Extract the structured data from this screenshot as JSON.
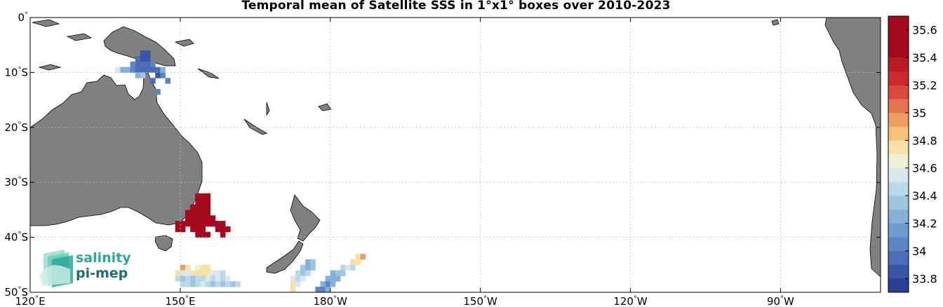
{
  "title": "Temporal mean of Satellite SSS in 1°x1° boxes over 2010-2023",
  "map": {
    "lon_range": [
      120,
      290
    ],
    "lat_range": [
      -50,
      0
    ],
    "land_color": "#808080",
    "grid": true
  },
  "x_ticks": [
    {
      "lon": 120,
      "num": "120",
      "hemi": "E"
    },
    {
      "lon": 150,
      "num": "150",
      "hemi": "E"
    },
    {
      "lon": 180,
      "num": "180",
      "hemi": "W"
    },
    {
      "lon": 210,
      "num": "150",
      "hemi": "W"
    },
    {
      "lon": 240,
      "num": "120",
      "hemi": "W"
    },
    {
      "lon": 270,
      "num": "90",
      "hemi": "W"
    }
  ],
  "y_ticks": [
    {
      "lat": 0,
      "num": "0",
      "hemi": ""
    },
    {
      "lat": -10,
      "num": "10",
      "hemi": "S"
    },
    {
      "lat": -20,
      "num": "20",
      "hemi": "S"
    },
    {
      "lat": -30,
      "num": "30",
      "hemi": "S"
    },
    {
      "lat": -40,
      "num": "40",
      "hemi": "S"
    },
    {
      "lat": -50,
      "num": "50",
      "hemi": "S"
    }
  ],
  "colorbar": {
    "min": 33.7,
    "max": 35.7,
    "colors": [
      "#2a3d95",
      "#3a55a6",
      "#4a6db5",
      "#5b86c2",
      "#6d9cce",
      "#84b1da",
      "#9ec6e3",
      "#b9d9ea",
      "#d8e8ec",
      "#edeed8",
      "#f6e1a6",
      "#f5c27a",
      "#ef9e63",
      "#e57352",
      "#d94a3a",
      "#c92a2b",
      "#b81b23",
      "#a50a1e",
      "#a50a1e",
      "#a50a1e"
    ],
    "tick_values": [
      33.8,
      34,
      34.2,
      34.4,
      34.6,
      34.8,
      35,
      35.2,
      35.4,
      35.6
    ],
    "tick_labels": [
      "33.8",
      "34",
      "34.2",
      "34.4",
      "34.6",
      "34.8",
      "35",
      "35.2",
      "35.4",
      "35.6"
    ]
  },
  "logo": {
    "line1": "salinity",
    "line2": "pi-mep",
    "color1": "#2aa89a",
    "color2": "#1e6e6a"
  },
  "sss_boxes": [
    {
      "lon": 142,
      "lat": -7,
      "v": 33.9
    },
    {
      "lon": 143,
      "lat": -7,
      "v": 33.85
    },
    {
      "lon": 141,
      "lat": -8,
      "v": 34.0
    },
    {
      "lon": 142,
      "lat": -8,
      "v": 33.9
    },
    {
      "lon": 143,
      "lat": -8,
      "v": 33.9
    },
    {
      "lon": 140,
      "lat": -9,
      "v": 34.1
    },
    {
      "lon": 141,
      "lat": -9,
      "v": 34.0
    },
    {
      "lon": 142,
      "lat": -9,
      "v": 33.95
    },
    {
      "lon": 143,
      "lat": -9,
      "v": 34.0
    },
    {
      "lon": 144,
      "lat": -9,
      "v": 34.1
    },
    {
      "lon": 137,
      "lat": -10,
      "v": 34.55
    },
    {
      "lon": 138,
      "lat": -10,
      "v": 34.3
    },
    {
      "lon": 139,
      "lat": -10,
      "v": 34.2
    },
    {
      "lon": 140,
      "lat": -10,
      "v": 34.1
    },
    {
      "lon": 141,
      "lat": -10,
      "v": 34.0
    },
    {
      "lon": 142,
      "lat": -10,
      "v": 34.0
    },
    {
      "lon": 143,
      "lat": -10,
      "v": 33.95
    },
    {
      "lon": 144,
      "lat": -10,
      "v": 33.95
    },
    {
      "lon": 145,
      "lat": -10,
      "v": 34.0
    },
    {
      "lon": 146,
      "lat": -10,
      "v": 34.2
    },
    {
      "lon": 141,
      "lat": -11,
      "v": 34.3
    },
    {
      "lon": 142,
      "lat": -11,
      "v": 34.4
    },
    {
      "lon": 145,
      "lat": -11,
      "v": 33.9
    },
    {
      "lon": 146,
      "lat": -11,
      "v": 34.1
    },
    {
      "lon": 144,
      "lat": -12,
      "v": 34.0
    },
    {
      "lon": 147,
      "lat": -12,
      "v": 34.1
    },
    {
      "lon": 145,
      "lat": -14,
      "v": 34.05
    },
    {
      "lon": 153,
      "lat": -33,
      "v": 35.55
    },
    {
      "lon": 154,
      "lat": -33,
      "v": 35.55
    },
    {
      "lon": 155,
      "lat": -33,
      "v": 35.55
    },
    {
      "lon": 153,
      "lat": -34,
      "v": 35.55
    },
    {
      "lon": 154,
      "lat": -34,
      "v": 35.55
    },
    {
      "lon": 155,
      "lat": -34,
      "v": 35.55
    },
    {
      "lon": 152,
      "lat": -35,
      "v": 35.55
    },
    {
      "lon": 153,
      "lat": -35,
      "v": 35.55
    },
    {
      "lon": 154,
      "lat": -35,
      "v": 35.55
    },
    {
      "lon": 155,
      "lat": -35,
      "v": 35.55
    },
    {
      "lon": 151,
      "lat": -36,
      "v": 35.55
    },
    {
      "lon": 152,
      "lat": -36,
      "v": 35.55
    },
    {
      "lon": 153,
      "lat": -36,
      "v": 35.55
    },
    {
      "lon": 154,
      "lat": -36,
      "v": 35.55
    },
    {
      "lon": 155,
      "lat": -36,
      "v": 35.55
    },
    {
      "lon": 151,
      "lat": -37,
      "v": 35.55
    },
    {
      "lon": 152,
      "lat": -37,
      "v": 35.55
    },
    {
      "lon": 153,
      "lat": -37,
      "v": 35.55
    },
    {
      "lon": 154,
      "lat": -37,
      "v": 35.55
    },
    {
      "lon": 155,
      "lat": -37,
      "v": 35.55
    },
    {
      "lon": 156,
      "lat": -37,
      "v": 35.55
    },
    {
      "lon": 149,
      "lat": -38,
      "v": 35.5
    },
    {
      "lon": 150,
      "lat": -38,
      "v": 35.5
    },
    {
      "lon": 151,
      "lat": -38,
      "v": 35.5
    },
    {
      "lon": 152,
      "lat": -38,
      "v": 35.5
    },
    {
      "lon": 153,
      "lat": -38,
      "v": 35.5
    },
    {
      "lon": 154,
      "lat": -38,
      "v": 35.5
    },
    {
      "lon": 155,
      "lat": -38,
      "v": 35.5
    },
    {
      "lon": 156,
      "lat": -38,
      "v": 35.5
    },
    {
      "lon": 157,
      "lat": -38,
      "v": 35.5
    },
    {
      "lon": 158,
      "lat": -38,
      "v": 35.5
    },
    {
      "lon": 149,
      "lat": -39,
      "v": 35.45
    },
    {
      "lon": 150,
      "lat": -39,
      "v": 35.45
    },
    {
      "lon": 152,
      "lat": -39,
      "v": 35.45
    },
    {
      "lon": 153,
      "lat": -39,
      "v": 35.45
    },
    {
      "lon": 154,
      "lat": -39,
      "v": 35.45
    },
    {
      "lon": 157,
      "lat": -39,
      "v": 35.45
    },
    {
      "lon": 158,
      "lat": -39,
      "v": 35.45
    },
    {
      "lon": 159,
      "lat": -39,
      "v": 35.45
    },
    {
      "lon": 153,
      "lat": -40,
      "v": 35.45
    },
    {
      "lon": 154,
      "lat": -40,
      "v": 35.45
    },
    {
      "lon": 155,
      "lat": -40,
      "v": 35.45
    },
    {
      "lon": 158,
      "lat": -40,
      "v": 35.45
    },
    {
      "lon": 150,
      "lat": -46,
      "v": 35.0
    },
    {
      "lon": 151,
      "lat": -46,
      "v": 34.75
    },
    {
      "lon": 153,
      "lat": -46,
      "v": 34.65
    },
    {
      "lon": 154,
      "lat": -46,
      "v": 34.8
    },
    {
      "lon": 155,
      "lat": -46,
      "v": 34.8
    },
    {
      "lon": 149,
      "lat": -47,
      "v": 34.7
    },
    {
      "lon": 150,
      "lat": -47,
      "v": 34.6
    },
    {
      "lon": 151,
      "lat": -47,
      "v": 34.6
    },
    {
      "lon": 152,
      "lat": -47,
      "v": 34.7
    },
    {
      "lon": 153,
      "lat": -47,
      "v": 34.8
    },
    {
      "lon": 154,
      "lat": -47,
      "v": 34.8
    },
    {
      "lon": 155,
      "lat": -47,
      "v": 34.8
    },
    {
      "lon": 156,
      "lat": -47,
      "v": 34.6
    },
    {
      "lon": 157,
      "lat": -47,
      "v": 34.6
    },
    {
      "lon": 158,
      "lat": -47,
      "v": 34.5
    },
    {
      "lon": 149,
      "lat": -48,
      "v": 34.5
    },
    {
      "lon": 150,
      "lat": -48,
      "v": 34.4
    },
    {
      "lon": 151,
      "lat": -48,
      "v": 34.5
    },
    {
      "lon": 152,
      "lat": -48,
      "v": 34.4
    },
    {
      "lon": 153,
      "lat": -48,
      "v": 34.5
    },
    {
      "lon": 154,
      "lat": -48,
      "v": 34.5
    },
    {
      "lon": 155,
      "lat": -48,
      "v": 34.6
    },
    {
      "lon": 156,
      "lat": -48,
      "v": 34.5
    },
    {
      "lon": 157,
      "lat": -48,
      "v": 34.6
    },
    {
      "lon": 158,
      "lat": -48,
      "v": 34.5
    },
    {
      "lon": 159,
      "lat": -48,
      "v": 34.6
    },
    {
      "lon": 150,
      "lat": -49,
      "v": 34.5
    },
    {
      "lon": 151,
      "lat": -49,
      "v": 34.5
    },
    {
      "lon": 152,
      "lat": -49,
      "v": 34.4
    },
    {
      "lon": 153,
      "lat": -49,
      "v": 34.5
    },
    {
      "lon": 154,
      "lat": -49,
      "v": 34.6
    },
    {
      "lon": 155,
      "lat": -49,
      "v": 34.5
    },
    {
      "lon": 156,
      "lat": -49,
      "v": 34.4
    },
    {
      "lon": 157,
      "lat": -49,
      "v": 34.5
    },
    {
      "lon": 158,
      "lat": -49,
      "v": 34.4
    },
    {
      "lon": 159,
      "lat": -49,
      "v": 34.5
    },
    {
      "lon": 160,
      "lat": -49,
      "v": 34.4
    },
    {
      "lon": 161,
      "lat": -49,
      "v": 34.5
    },
    {
      "lon": 175,
      "lat": -45,
      "v": 34.3
    },
    {
      "lon": 176,
      "lat": -45,
      "v": 34.4
    },
    {
      "lon": 174,
      "lat": -46,
      "v": 34.4
    },
    {
      "lon": 175,
      "lat": -46,
      "v": 34.3
    },
    {
      "lon": 176,
      "lat": -46,
      "v": 34.4
    },
    {
      "lon": 173,
      "lat": -47,
      "v": 34.5
    },
    {
      "lon": 174,
      "lat": -47,
      "v": 34.4
    },
    {
      "lon": 175,
      "lat": -47,
      "v": 34.5
    },
    {
      "lon": 172,
      "lat": -48,
      "v": 34.6
    },
    {
      "lon": 173,
      "lat": -48,
      "v": 34.5
    },
    {
      "lon": 174,
      "lat": -48,
      "v": 34.6
    },
    {
      "lon": 172,
      "lat": -49,
      "v": 34.8
    },
    {
      "lon": 173,
      "lat": -49,
      "v": 34.6
    },
    {
      "lon": 172,
      "lat": -50,
      "v": 34.7
    },
    {
      "lon": 185,
      "lat": -44,
      "v": 34.7
    },
    {
      "lon": 186,
      "lat": -44,
      "v": 35.0
    },
    {
      "lon": 184,
      "lat": -45,
      "v": 34.8
    },
    {
      "lon": 185,
      "lat": -45,
      "v": 34.7
    },
    {
      "lon": 182,
      "lat": -46,
      "v": 34.5
    },
    {
      "lon": 183,
      "lat": -46,
      "v": 34.6
    },
    {
      "lon": 184,
      "lat": -46,
      "v": 34.5
    },
    {
      "lon": 180,
      "lat": -47,
      "v": 34.3
    },
    {
      "lon": 181,
      "lat": -47,
      "v": 34.4
    },
    {
      "lon": 182,
      "lat": -47,
      "v": 34.4
    },
    {
      "lon": 179,
      "lat": -48,
      "v": 34.2
    },
    {
      "lon": 180,
      "lat": -48,
      "v": 34.2
    },
    {
      "lon": 181,
      "lat": -48,
      "v": 34.3
    },
    {
      "lon": 178,
      "lat": -49,
      "v": 34.2
    },
    {
      "lon": 179,
      "lat": -49,
      "v": 34.1
    },
    {
      "lon": 180,
      "lat": -49,
      "v": 34.2
    },
    {
      "lon": 177,
      "lat": -50,
      "v": 34.1
    },
    {
      "lon": 178,
      "lat": -50,
      "v": 34.1
    },
    {
      "lon": 179,
      "lat": -50,
      "v": 34.2
    }
  ]
}
